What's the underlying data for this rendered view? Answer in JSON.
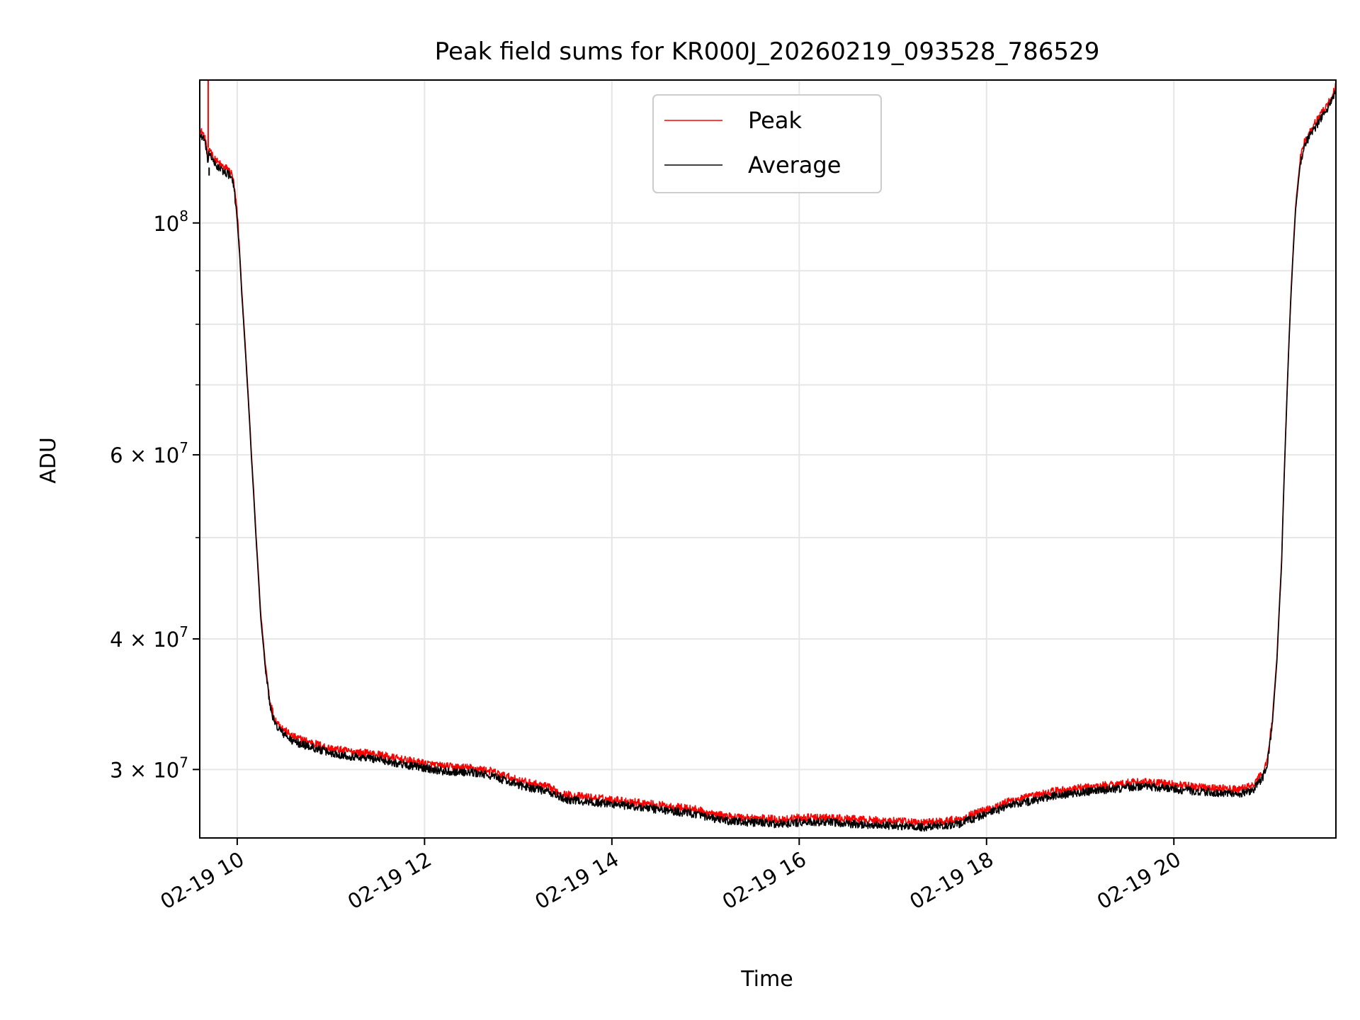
{
  "chart_data": {
    "type": "line",
    "title": "Peak field sums for KR000J_20260219_093528_786529",
    "xlabel": "Time",
    "ylabel": "ADU",
    "yscale": "log",
    "grid": true,
    "legend_position": "upper center",
    "xlim": [
      9.6,
      21.73
    ],
    "ylim": [
      25800000,
      137000000
    ],
    "x_ticks": [
      {
        "value": 10,
        "label": "02-19 10"
      },
      {
        "value": 12,
        "label": "02-19 12"
      },
      {
        "value": 14,
        "label": "02-19 14"
      },
      {
        "value": 16,
        "label": "02-19 16"
      },
      {
        "value": 18,
        "label": "02-19 18"
      },
      {
        "value": 20,
        "label": "02-19 20"
      }
    ],
    "y_major_ticks": [
      {
        "value": 100000000,
        "base": "10",
        "exp": "8"
      },
      {
        "value": 60000000,
        "base": "6 × 10",
        "exp": "7"
      },
      {
        "value": 40000000,
        "base": "4 × 10",
        "exp": "7"
      },
      {
        "value": 30000000,
        "base": "3 × 10",
        "exp": "7"
      }
    ],
    "y_minor_ticks": [
      50000000,
      70000000,
      80000000,
      90000000
    ],
    "series": [
      {
        "name": "Peak",
        "color": "#ff0000",
        "noise_amplitude": 0.009,
        "offset": 1.01,
        "spike": {
          "x": 9.69,
          "y": 137000000
        },
        "x": [
          9.6,
          9.63,
          9.67,
          9.69,
          9.7,
          9.72,
          9.75,
          9.8,
          9.85,
          9.9,
          9.95,
          9.98,
          10.0,
          10.02,
          10.05,
          10.1,
          10.15,
          10.2,
          10.25,
          10.3,
          10.35,
          10.4,
          10.5,
          10.6,
          10.8,
          11.0,
          11.2,
          11.5,
          11.8,
          12.0,
          12.2,
          12.5,
          12.7,
          13.0,
          13.3,
          13.5,
          13.8,
          14.0,
          14.3,
          14.6,
          14.9,
          15.0,
          15.2,
          15.5,
          15.8,
          16.0,
          16.3,
          16.6,
          17.0,
          17.3,
          17.5,
          17.7,
          17.9,
          18.1,
          18.3,
          18.5,
          18.7,
          19.0,
          19.3,
          19.6,
          19.9,
          20.2,
          20.5,
          20.7,
          20.85,
          20.95,
          21.0,
          21.05,
          21.1,
          21.15,
          21.2,
          21.25,
          21.3,
          21.35,
          21.4,
          21.45,
          21.5,
          21.55,
          21.6,
          21.65,
          21.7,
          21.73
        ],
        "values": [
          121000000,
          121000000,
          118000000,
          113000000,
          117000000,
          116000000,
          114000000,
          113000000,
          112000000,
          111500000,
          110000000,
          105000000,
          101000000,
          95000000,
          85000000,
          72000000,
          60000000,
          50000000,
          42000000,
          37500000,
          34500000,
          33200000,
          32400000,
          31900000,
          31500000,
          31100000,
          30900000,
          30700000,
          30300000,
          30100000,
          29900000,
          29800000,
          29600000,
          29000000,
          28600000,
          28100000,
          27900000,
          27800000,
          27600000,
          27400000,
          27200000,
          27000000,
          26800000,
          26700000,
          26600000,
          26700000,
          26700000,
          26600000,
          26500000,
          26400000,
          26500000,
          26600000,
          27000000,
          27400000,
          27800000,
          28000000,
          28300000,
          28500000,
          28700000,
          28900000,
          28800000,
          28600000,
          28500000,
          28400000,
          28700000,
          29500000,
          30500000,
          33000000,
          38000000,
          47000000,
          65000000,
          85000000,
          103000000,
          114000000,
          119000000,
          121000000,
          123000000,
          125000000,
          127000000,
          129000000,
          131500000,
          134000000
        ]
      },
      {
        "name": "Average",
        "color": "#000000",
        "noise_amplitude": 0.009,
        "offset": 1.0,
        "dip": {
          "x": 9.7,
          "y": 111000000
        },
        "x": [
          9.6,
          9.63,
          9.67,
          9.69,
          9.7,
          9.72,
          9.75,
          9.8,
          9.85,
          9.9,
          9.95,
          9.98,
          10.0,
          10.02,
          10.05,
          10.1,
          10.15,
          10.2,
          10.25,
          10.3,
          10.35,
          10.4,
          10.5,
          10.6,
          10.8,
          11.0,
          11.2,
          11.5,
          11.8,
          12.0,
          12.2,
          12.5,
          12.7,
          13.0,
          13.3,
          13.5,
          13.8,
          14.0,
          14.3,
          14.6,
          14.9,
          15.0,
          15.2,
          15.5,
          15.8,
          16.0,
          16.3,
          16.6,
          17.0,
          17.3,
          17.5,
          17.7,
          17.9,
          18.1,
          18.3,
          18.5,
          18.7,
          19.0,
          19.3,
          19.6,
          19.9,
          20.2,
          20.5,
          20.7,
          20.85,
          20.95,
          21.0,
          21.05,
          21.1,
          21.15,
          21.2,
          21.25,
          21.3,
          21.35,
          21.4,
          21.45,
          21.5,
          21.55,
          21.6,
          21.65,
          21.7,
          21.73
        ],
        "values": [
          121000000,
          121000000,
          118000000,
          113000000,
          117000000,
          116000000,
          114000000,
          113000000,
          112000000,
          111500000,
          110000000,
          105000000,
          101000000,
          95000000,
          85000000,
          72000000,
          60000000,
          50000000,
          42000000,
          37500000,
          34500000,
          33200000,
          32400000,
          31900000,
          31500000,
          31100000,
          30900000,
          30700000,
          30300000,
          30100000,
          29900000,
          29800000,
          29600000,
          29000000,
          28600000,
          28100000,
          27900000,
          27800000,
          27600000,
          27400000,
          27200000,
          27000000,
          26800000,
          26700000,
          26600000,
          26700000,
          26700000,
          26600000,
          26500000,
          26400000,
          26500000,
          26600000,
          27000000,
          27400000,
          27800000,
          28000000,
          28300000,
          28500000,
          28700000,
          28900000,
          28800000,
          28600000,
          28500000,
          28400000,
          28700000,
          29500000,
          30500000,
          33000000,
          38000000,
          47000000,
          65000000,
          85000000,
          103000000,
          114000000,
          119000000,
          121000000,
          123000000,
          125000000,
          127000000,
          129000000,
          131500000,
          134000000
        ]
      }
    ]
  }
}
